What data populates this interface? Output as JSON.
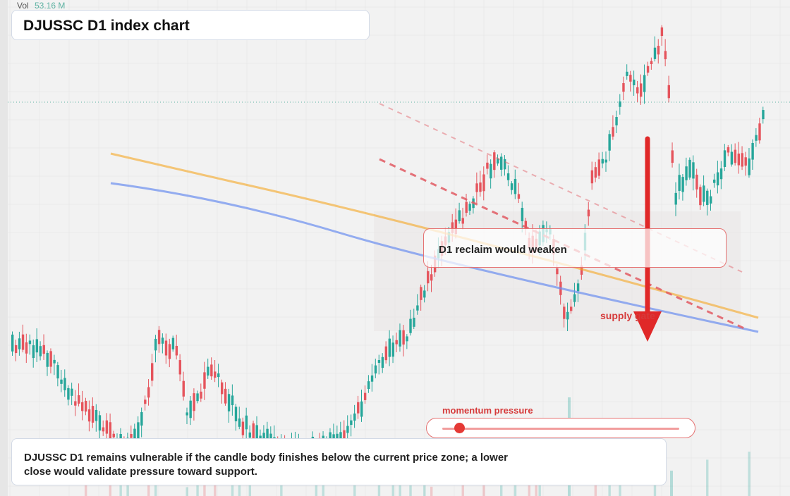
{
  "volume": {
    "label": "Vol",
    "value": "53.16 M"
  },
  "title": "DJUSSC D1 index chart",
  "annotation": "D1 reclaim would weaken",
  "zone_label": "supply gate",
  "momentum": {
    "label": "momentum pressure",
    "level": 0.07
  },
  "summary": "DJUSSC D1 remains vulnerable if the candle body finishes below the current price zone; a lower close would validate pressure toward support.",
  "colors": {
    "up": "#26a69a",
    "down": "#e5545c",
    "arrow": "#e02828",
    "ma_orange": "#f5a623",
    "ma_blue": "#6b8ff0",
    "resistance": "#e25b63"
  },
  "chart_data": {
    "type": "candlestick",
    "title": "DJUSSC D1 index chart",
    "xlabel": "",
    "ylabel": "",
    "grid": true,
    "volume": "53.16 M",
    "series": [
      {
        "name": "",
        "style": "orange moving average"
      },
      {
        "name": "",
        "style": "blue moving average"
      },
      {
        "name": "",
        "style": "red dashed resistance lines"
      }
    ]
  }
}
